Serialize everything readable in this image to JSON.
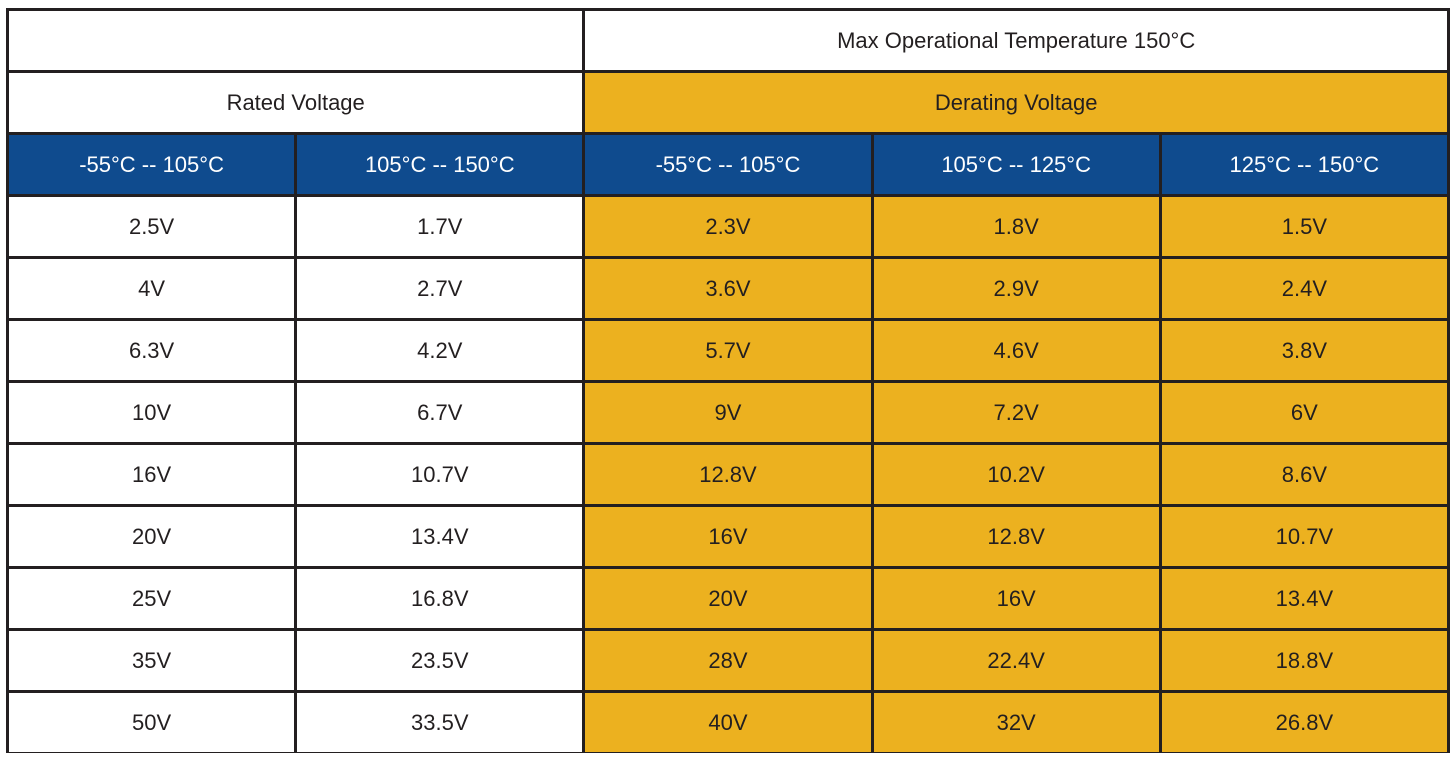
{
  "table": {
    "top_left": "",
    "max_temp": "Max Operational Temperature 150°C",
    "rated_voltage": "Rated Voltage",
    "derating_voltage": "Derating Voltage",
    "col_headers": [
      "-55°C -- 105°C",
      "105°C -- 150°C",
      "-55°C -- 105°C",
      "105°C -- 125°C",
      "125°C -- 150°C"
    ],
    "rows": [
      [
        "2.5V",
        "1.7V",
        "2.3V",
        "1.8V",
        "1.5V"
      ],
      [
        "4V",
        "2.7V",
        "3.6V",
        "2.9V",
        "2.4V"
      ],
      [
        "6.3V",
        "4.2V",
        "5.7V",
        "4.6V",
        "3.8V"
      ],
      [
        "10V",
        "6.7V",
        "9V",
        "7.2V",
        "6V"
      ],
      [
        "16V",
        "10.7V",
        "12.8V",
        "10.2V",
        "8.6V"
      ],
      [
        "20V",
        "13.4V",
        "16V",
        "12.8V",
        "10.7V"
      ],
      [
        "25V",
        "16.8V",
        "20V",
        "16V",
        "13.4V"
      ],
      [
        "35V",
        "23.5V",
        "28V",
        "22.4V",
        "18.8V"
      ],
      [
        "50V",
        "33.5V",
        "40V",
        "32V",
        "26.8V"
      ]
    ],
    "colors": {
      "border": "#231f20",
      "header_blue": "#0f4b8e",
      "derating_gold": "#ecb11f",
      "white": "#ffffff"
    }
  }
}
